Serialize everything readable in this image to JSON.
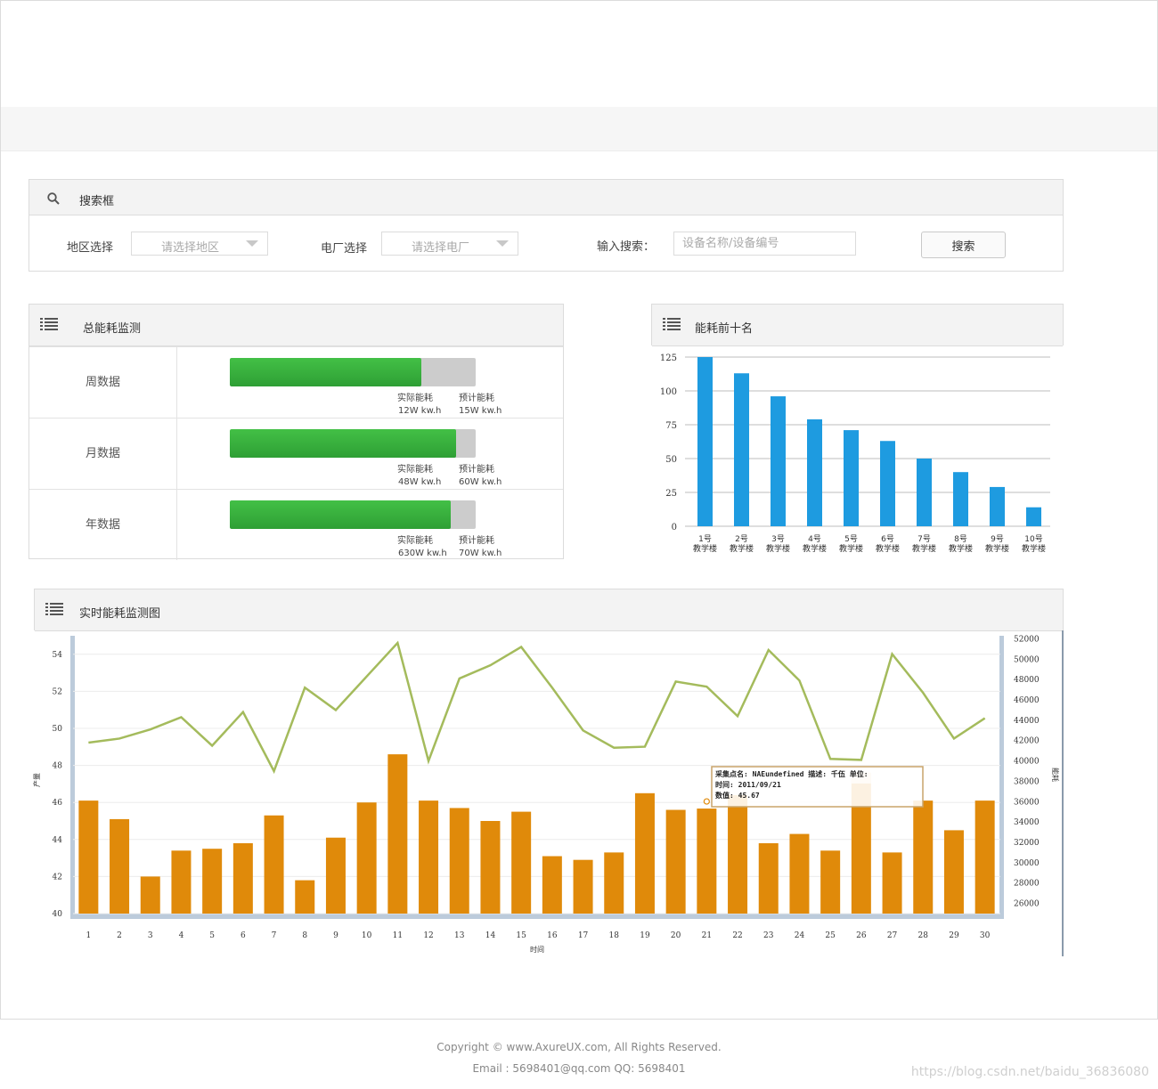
{
  "search": {
    "title": "搜索框",
    "region_label": "地区选择",
    "region_value": "请选择地区",
    "plant_label": "电厂选择",
    "plant_value": "请选择电厂",
    "query_label": "输入搜索：",
    "query_placeholder": "设备名称/设备编号",
    "search_button": "搜索"
  },
  "energy": {
    "title": "总能耗监测",
    "rows": [
      {
        "label": "周数据",
        "actual_label": "实际能耗",
        "actual_value": "12W kw.h",
        "planned_label": "预计能耗",
        "planned_value": "15W kw.h",
        "fill": 0.78
      },
      {
        "label": "月数据",
        "actual_label": "实际能耗",
        "actual_value": "48W kw.h",
        "planned_label": "预计能耗",
        "planned_value": "60W kw.h",
        "fill": 0.92
      },
      {
        "label": "年数据",
        "actual_label": "实际能耗",
        "actual_value": "630W kw.h",
        "planned_label": "预计能耗",
        "planned_value": "70W kw.h",
        "fill": 0.9
      }
    ]
  },
  "top10": {
    "title": "能耗前十名"
  },
  "realtime": {
    "title": "实时能耗监测图",
    "tooltip": {
      "line1": "采集点名: NAEundefined  描述: 千伍  单位:",
      "line2": "时间: 2011/09/21",
      "line3": "数值: 45.67"
    }
  },
  "footer": {
    "copyright": "Copyright © www.AxureUX.com, All Rights Reserved.",
    "contact": "Email : 5698401@qq.com   QQ: 5698401",
    "watermark": "https://blog.csdn.net/baidu_36836080"
  },
  "colors": {
    "bar_blue": "#1e9be0",
    "bar_orange": "#e08a0a",
    "line_green": "#a4bb5c",
    "progress_green": "#3bb03e"
  },
  "chart_data": [
    {
      "type": "bar",
      "title": "",
      "categories": [
        "1号教学楼",
        "2号教学楼",
        "3号教学楼",
        "4号教学楼",
        "5号教学楼",
        "6号教学楼",
        "7号教学楼",
        "8号教学楼",
        "9号教学楼",
        "10号教学楼"
      ],
      "category_lines": [
        [
          "1号",
          "教学楼"
        ],
        [
          "2号",
          "教学楼"
        ],
        [
          "3号",
          "教学楼"
        ],
        [
          "4号",
          "教学楼"
        ],
        [
          "5号",
          "教学楼"
        ],
        [
          "6号",
          "教学楼"
        ],
        [
          "7号",
          "教学楼"
        ],
        [
          "8号",
          "教学楼"
        ],
        [
          "9号",
          "教学楼"
        ],
        [
          "10号",
          "教学楼"
        ]
      ],
      "values": [
        125,
        113,
        96,
        79,
        71,
        63,
        50,
        40,
        29,
        14
      ],
      "ylim": [
        0,
        125
      ],
      "yticks": [
        0,
        25,
        50,
        75,
        100,
        125
      ],
      "grid": true,
      "xlabel": "",
      "ylabel": ""
    },
    {
      "type": "bar",
      "title": "",
      "x": [
        1,
        2,
        3,
        4,
        5,
        6,
        7,
        8,
        9,
        10,
        11,
        12,
        13,
        14,
        15,
        16,
        17,
        18,
        19,
        20,
        21,
        22,
        23,
        24,
        25,
        26,
        27,
        28,
        29,
        30
      ],
      "xlabel": "时间",
      "series": [
        {
          "type": "bar",
          "axis": "left",
          "values": [
            46.1,
            45.1,
            42.0,
            43.4,
            43.5,
            43.8,
            45.3,
            41.8,
            44.1,
            46.0,
            48.6,
            46.1,
            45.7,
            45.0,
            45.5,
            43.1,
            42.9,
            43.3,
            46.5,
            45.6,
            45.67,
            46.4,
            43.8,
            44.3,
            43.4,
            47.6,
            43.3,
            46.1,
            44.5,
            46.1
          ]
        },
        {
          "type": "line",
          "axis": "right",
          "values": [
            41800,
            42200,
            43100,
            44300,
            41500,
            44800,
            39000,
            47200,
            45000,
            48300,
            51600,
            40000,
            48100,
            49400,
            51200,
            47200,
            43000,
            41300,
            41400,
            47800,
            47300,
            44400,
            50900,
            47900,
            40200,
            40100,
            50500,
            46700,
            42200,
            44200
          ]
        }
      ],
      "left_ylim": [
        40,
        55
      ],
      "left_yticks": [
        40,
        42,
        44,
        46,
        48,
        50,
        52,
        54
      ],
      "right_ylim": [
        25000,
        52300
      ],
      "right_yticks": [
        26000,
        28000,
        30000,
        32000,
        34000,
        36000,
        38000,
        40000,
        42000,
        44000,
        46000,
        48000,
        50000,
        52000
      ],
      "left_ylabel": "产量",
      "right_ylabel": "能耗"
    }
  ]
}
